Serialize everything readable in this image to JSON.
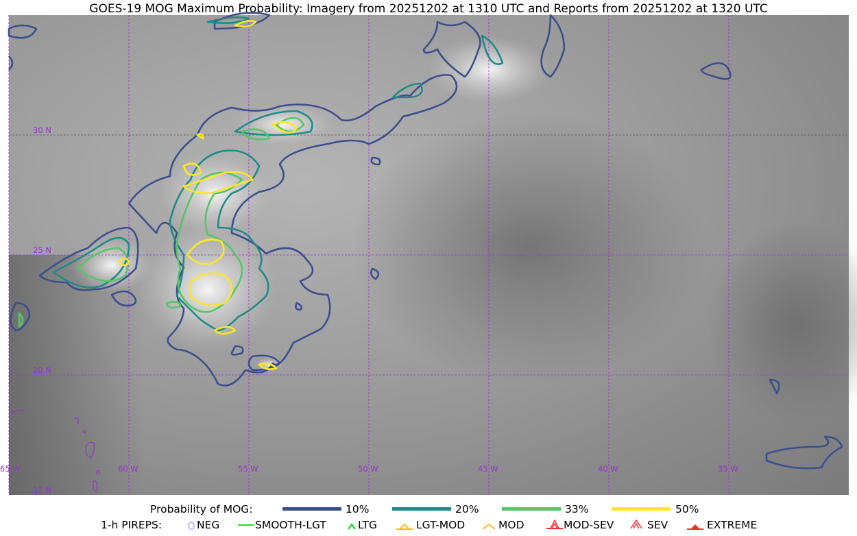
{
  "title": "GOES-19 MOG Maximum Probability: Imagery from 20251202 at 1310 UTC and Reports from 20251202 at 1320 UTC",
  "map": {
    "lat_labels": [
      "30 N",
      "25 N",
      "20 N",
      "15 N"
    ],
    "lon_labels": [
      "65 W",
      "60 W",
      "55 W",
      "50 W",
      "45 W",
      "40 W",
      "35 W"
    ],
    "gridline_color": "#9b30d0",
    "contour_colors": {
      "p10": "#3b4f8c",
      "p20": "#1f8a88",
      "p33": "#56c566",
      "p50": "#fde725"
    }
  },
  "legend": {
    "probability_label": "Probability of MOG:",
    "probability_levels": [
      {
        "label": "10%",
        "color": "#3b4f8c"
      },
      {
        "label": "20%",
        "color": "#1f8a88"
      },
      {
        "label": "33%",
        "color": "#56c566"
      },
      {
        "label": "50%",
        "color": "#fde725"
      }
    ],
    "pireps_label": "1-h PIREPS:",
    "pireps": [
      {
        "label": "NEG",
        "icon": "neg-circle-icon",
        "color": "#c8c8f5"
      },
      {
        "label": "SMOOTH-LGT",
        "icon": "line-icon",
        "color": "#22dd22"
      },
      {
        "label": "LTG",
        "icon": "caret-icon",
        "color": "#00dd00"
      },
      {
        "label": "LGT-MOD",
        "icon": "caret-bar-icon",
        "color": "#fbb829"
      },
      {
        "label": "MOD",
        "icon": "caret-icon",
        "color": "#fbb829"
      },
      {
        "label": "MOD-SEV",
        "icon": "double-caret-bar-icon",
        "color": "#f03030"
      },
      {
        "label": "SEV",
        "icon": "double-caret-icon",
        "color": "#f03030"
      },
      {
        "label": "EXTREME",
        "icon": "triangle-bar-icon",
        "color": "#f03030"
      }
    ]
  }
}
